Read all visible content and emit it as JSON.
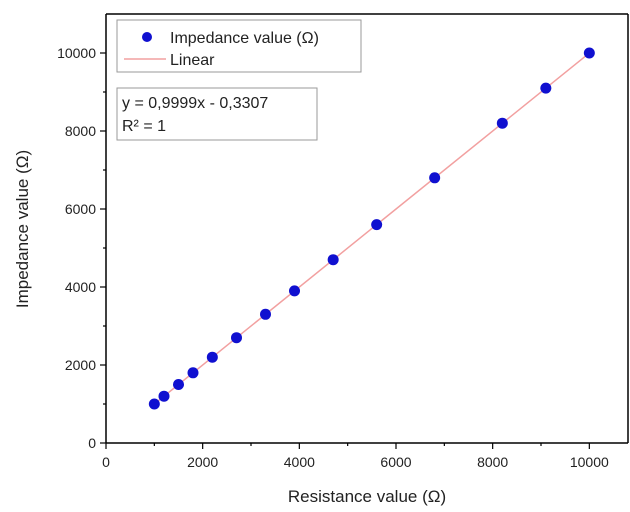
{
  "chart_data": {
    "type": "scatter",
    "title": "",
    "xlabel": "Resistance value (Ω)",
    "ylabel": "Impedance value (Ω)",
    "xlim": [
      0,
      10800
    ],
    "ylim": [
      0,
      11000
    ],
    "xticks": [
      0,
      2000,
      4000,
      6000,
      8000,
      10000
    ],
    "yticks": [
      0,
      2000,
      4000,
      6000,
      8000,
      10000
    ],
    "grid": false,
    "legend_position": "top-left",
    "series": [
      {
        "name": "Impedance value (Ω)",
        "kind": "scatter",
        "color": "#1010d0",
        "x": [
          1000,
          1200,
          1500,
          1800,
          2200,
          2700,
          3300,
          3900,
          4700,
          5600,
          6800,
          8200,
          9100,
          10000
        ],
        "y": [
          1000,
          1200,
          1500,
          1800,
          2200,
          2700,
          3300,
          3900,
          4700,
          5600,
          6800,
          8200,
          9100,
          10000
        ]
      },
      {
        "name": "Linear",
        "kind": "line",
        "color": "#f2a0a0",
        "slope": 0.9999,
        "intercept": -0.3307,
        "x_range": [
          1000,
          10000
        ]
      }
    ],
    "fit_box": {
      "equation": "y = 0,9999x - 0,3307",
      "r_squared": "R² = 1"
    }
  }
}
